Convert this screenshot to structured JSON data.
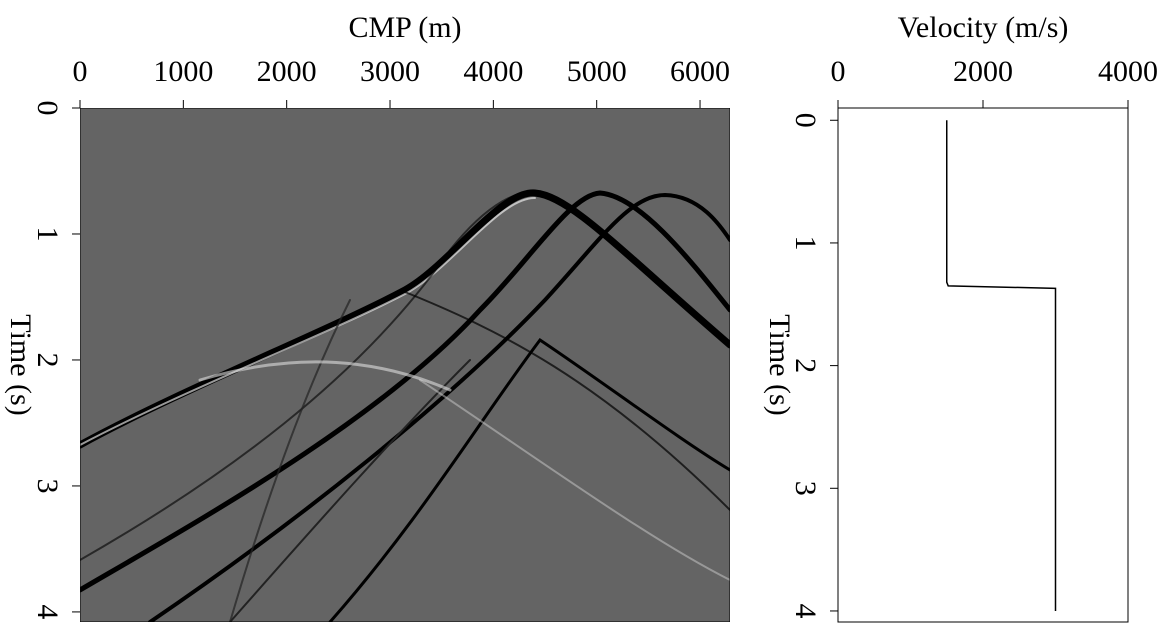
{
  "chart_data": [
    {
      "type": "image",
      "xlabel": "CMP (m)",
      "ylabel": "Time (s)",
      "xlim": [
        0,
        6290
      ],
      "xticks": [
        0,
        1000,
        2000,
        3000,
        4000,
        5000,
        6000
      ],
      "ylim": [
        0,
        4.08
      ],
      "yticks": [
        0,
        1,
        2,
        3,
        4
      ],
      "y_inverted": true
    },
    {
      "type": "line",
      "xlabel": "Velocity (m/s)",
      "ylabel": "Time (s)",
      "x": [
        1500,
        1500,
        1520,
        3000,
        3000
      ],
      "y": [
        0,
        1.32,
        1.35,
        1.37,
        4
      ],
      "color": "#000000",
      "xlim": [
        0,
        4000
      ],
      "xticks": [
        0,
        2000,
        4000
      ],
      "ylim": [
        -0.1,
        4.09
      ],
      "yticks": [
        0,
        1,
        2,
        3,
        4
      ],
      "y_inverted": true
    }
  ]
}
